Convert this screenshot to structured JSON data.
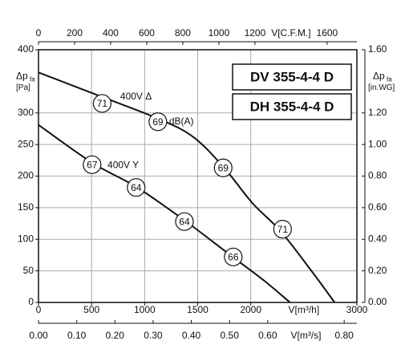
{
  "chart_data": {
    "type": "line",
    "xlim": [
      0,
      3000
    ],
    "xticks": [
      0,
      500,
      1000,
      1500,
      2000,
      3000
    ],
    "xlabel": "V[m³/h]",
    "ylim": [
      0,
      400
    ],
    "yticks": [
      0,
      50,
      100,
      150,
      200,
      250,
      300,
      400
    ],
    "ylabel": {
      "main": "Δp",
      "sub": "fa",
      "unit": "[Pa]"
    },
    "y2lim": [
      0,
      1.6
    ],
    "y2ticks": [
      {
        "value": 0,
        "label": "0.00"
      },
      {
        "value": 0.2,
        "label": "0.20"
      },
      {
        "value": 0.4,
        "label": "0.40"
      },
      {
        "value": 0.6,
        "label": "0.60"
      },
      {
        "value": 0.8,
        "label": "0.80"
      },
      {
        "value": 1.0,
        "label": "1.00"
      },
      {
        "value": 1.2,
        "label": "1.20"
      },
      {
        "value": 1.6,
        "label": "1.60"
      }
    ],
    "y2label": {
      "main": "Δp",
      "sub": "fa",
      "unit": "[in.WG]",
      "at": 1.4
    },
    "top_axis": {
      "xlim": [
        0,
        1765
      ],
      "xticks": [
        0,
        200,
        400,
        600,
        800,
        1000,
        1200,
        1600
      ],
      "label": "V[C.F.M.]",
      "at": 1400
    },
    "bottom2_axis": {
      "xlim": [
        0,
        0.8333
      ],
      "xticks": [
        {
          "value": 0,
          "label": "0.00"
        },
        {
          "value": 0.1,
          "label": "0.10"
        },
        {
          "value": 0.2,
          "label": "0.20"
        },
        {
          "value": 0.3,
          "label": "0.30"
        },
        {
          "value": 0.4,
          "label": "0.40"
        },
        {
          "value": 0.5,
          "label": "0.50"
        },
        {
          "value": 0.6,
          "label": "0.60"
        },
        {
          "value": 0.8,
          "label": "0.80"
        }
      ],
      "label": "V[m³/s]",
      "at": 0.7
    },
    "xlabel_at": 2500,
    "ylabel_at": 350,
    "grid": true,
    "series": [
      {
        "name": "400V Δ",
        "color": "#111111",
        "x": [
          0,
          620,
          1125,
          1450,
          1740,
          2017,
          2280,
          2585,
          2790
        ],
        "values": [
          364,
          324,
          291,
          263,
          215,
          157,
          113,
          47,
          0
        ],
        "label_pos": [
          770,
          325
        ]
      },
      {
        "name": "400V Y",
        "color": "#111111",
        "x": [
          0,
          506,
          920,
          1375,
          1830,
          2130,
          2370
        ],
        "values": [
          281,
          221,
          183,
          130,
          72,
          34,
          0
        ],
        "label_pos": [
          650,
          217
        ]
      }
    ],
    "noise_markers": [
      {
        "value": 71,
        "x": 600,
        "y": 315,
        "series": 0
      },
      {
        "value": 69,
        "x": 1125,
        "y": 286,
        "series": 0
      },
      {
        "value": 69,
        "x": 1740,
        "y": 213,
        "series": 0
      },
      {
        "value": 71,
        "x": 2300,
        "y": 116,
        "series": 0
      },
      {
        "value": 67,
        "x": 505,
        "y": 218,
        "series": 1
      },
      {
        "value": 64,
        "x": 920,
        "y": 182,
        "series": 1
      },
      {
        "value": 64,
        "x": 1375,
        "y": 128,
        "series": 1
      },
      {
        "value": 66,
        "x": 1835,
        "y": 72,
        "series": 1
      }
    ],
    "noise_unit": "dB(A)",
    "models": [
      "DV 355-4-4 D",
      "DH 355-4-4 D"
    ]
  }
}
